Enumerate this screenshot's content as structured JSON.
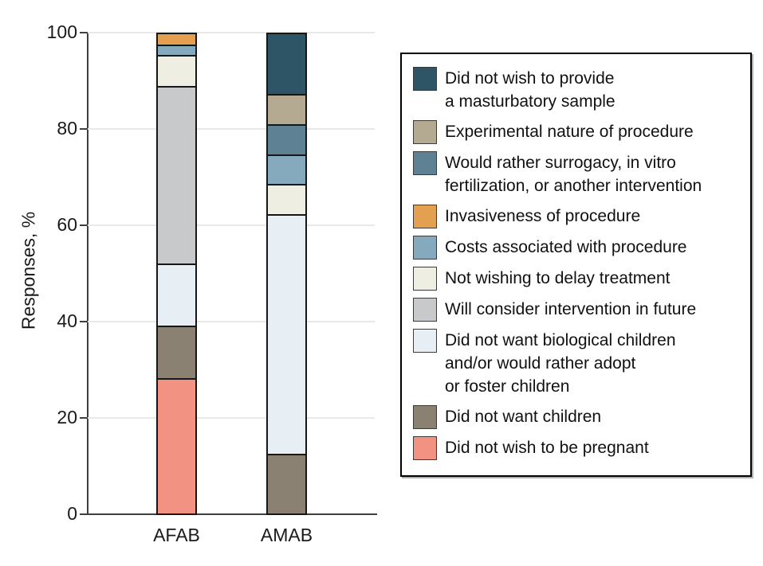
{
  "figure": {
    "background": "#ffffff",
    "grid_color": "#e8e8e8",
    "axis_color": "#3f3f3f",
    "bar_outline_color": "#161616"
  },
  "chart_data": {
    "type": "bar",
    "stacked": true,
    "title": "",
    "xlabel": "",
    "ylabel": "Responses, %",
    "ylim": [
      0,
      100
    ],
    "yticks": [
      0,
      20,
      40,
      60,
      80,
      100
    ],
    "grid": true,
    "legend_position": "right",
    "categories": [
      "AFAB",
      "AMAB"
    ],
    "series": [
      {
        "id": "masturbatory-sample",
        "name": "Did not wish to provide a masturbatory sample",
        "lines": [
          "Did not wish to provide",
          "a masturbatory sample"
        ],
        "color": "#2e5566",
        "values": [
          0,
          12.5
        ]
      },
      {
        "id": "experimental-nature",
        "name": "Experimental nature of procedure",
        "lines": [
          "Experimental nature of procedure"
        ],
        "color": "#b4aa92",
        "values": [
          0,
          6.25
        ]
      },
      {
        "id": "rather-surrogacy-ivf",
        "name": "Would rather surrogacy, in vitro fertilization, or another intervention",
        "lines": [
          "Would rather surrogacy, in vitro",
          "fertilization, or another intervention"
        ],
        "color": "#5e8294",
        "values": [
          0,
          6.25
        ]
      },
      {
        "id": "invasiveness",
        "name": "Invasiveness of procedure",
        "lines": [
          "Invasiveness of procedure"
        ],
        "color": "#e3a051",
        "values": [
          2.17,
          0
        ]
      },
      {
        "id": "costs",
        "name": "Costs associated with procedure",
        "lines": [
          "Costs associated with procedure"
        ],
        "color": "#85aabe",
        "values": [
          2.17,
          6.25
        ]
      },
      {
        "id": "delay-treatment",
        "name": "Not wishing to delay treatment",
        "lines": [
          "Not wishing to delay treatment"
        ],
        "color": "#efeee2",
        "values": [
          6.52,
          6.25
        ]
      },
      {
        "id": "consider-future",
        "name": "Will consider intervention in future",
        "lines": [
          "Will consider intervention in future"
        ],
        "color": "#c8c9cb",
        "values": [
          36.96,
          0
        ]
      },
      {
        "id": "no-biological-children",
        "name": "Did not want biological children and/or would rather adopt or foster children",
        "lines": [
          "Did not want biological children",
          "and/or would rather adopt",
          "or foster children"
        ],
        "color": "#e7eff4",
        "values": [
          13.04,
          50
        ]
      },
      {
        "id": "no-children",
        "name": "Did not want children",
        "lines": [
          "Did not want children"
        ],
        "color": "#8b8173",
        "values": [
          10.87,
          12.5
        ]
      },
      {
        "id": "not-pregnant",
        "name": "Did not wish to be pregnant",
        "lines": [
          "Did not wish to be pregnant"
        ],
        "color": "#f19282",
        "values": [
          28.26,
          0
        ]
      }
    ]
  }
}
